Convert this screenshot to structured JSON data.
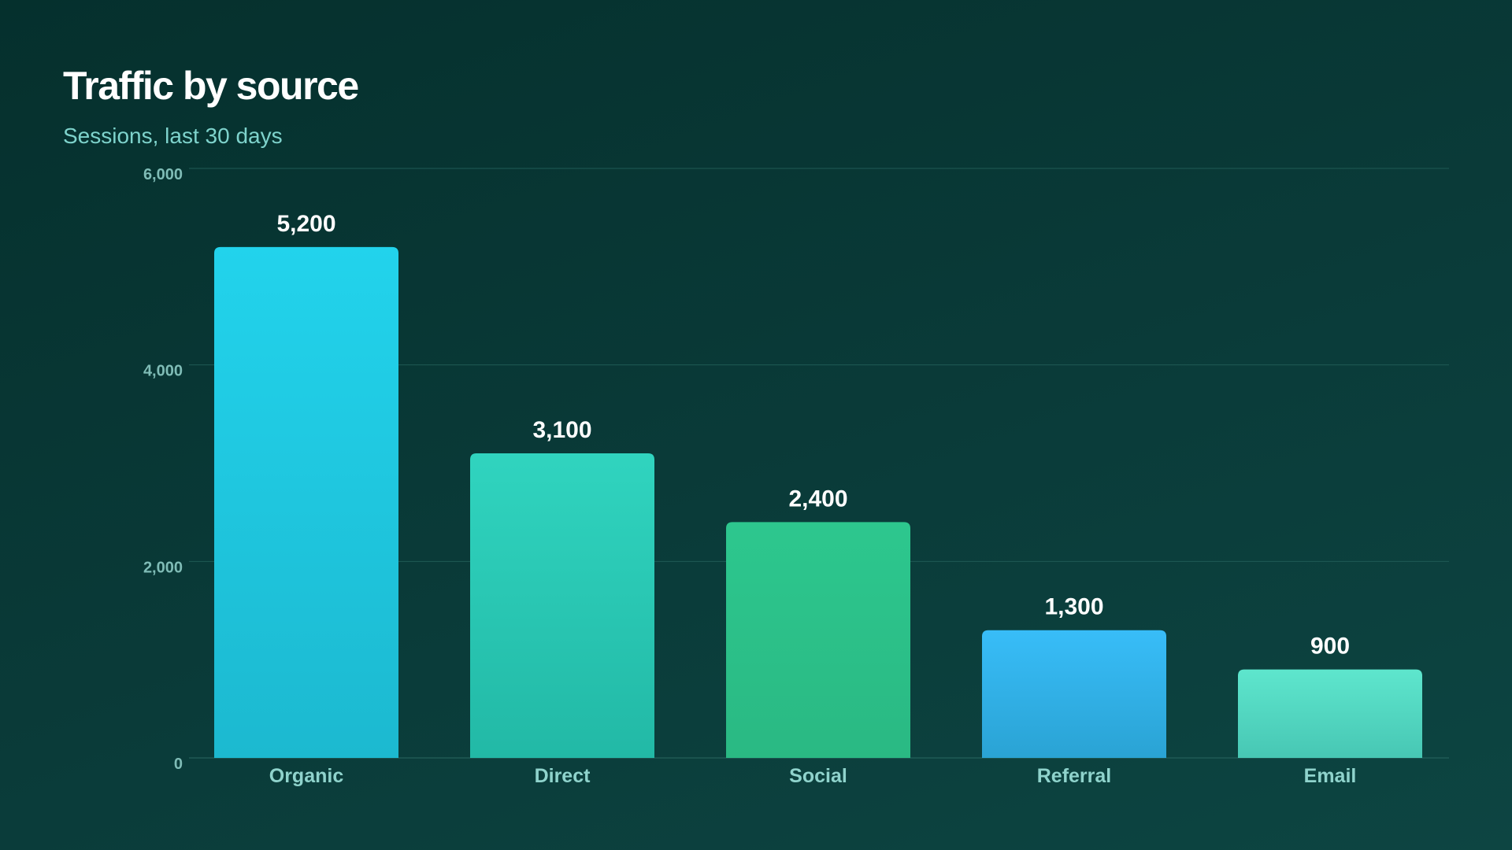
{
  "chart_data": {
    "type": "bar",
    "title": "Traffic by source",
    "subtitle": "Sessions, last 30 days",
    "xlabel": "",
    "ylabel": "",
    "categories": [
      "Organic",
      "Direct",
      "Social",
      "Referral",
      "Email"
    ],
    "values": [
      5200,
      3100,
      2400,
      1300,
      900
    ],
    "value_labels": [
      "5,200",
      "3,100",
      "2,400",
      "1,300",
      "900"
    ],
    "ylim": [
      0,
      6000
    ],
    "yticks": [
      0,
      2000,
      4000,
      6000
    ],
    "ytick_labels": [
      "0",
      "2,000",
      "4,000",
      "6,000"
    ],
    "grid": true,
    "legend": "none",
    "colors": [
      [
        "#22d3ec",
        "#1cb9d0"
      ],
      [
        "#30d4bf",
        "#22b9a6"
      ],
      [
        "#2dc78e",
        "#2ab983"
      ],
      [
        "#38bdf8",
        "#2aa3d4"
      ],
      [
        "#5ee6cd",
        "#47c7b4"
      ]
    ],
    "background": "#06302e",
    "gridline_color": "#1f5a55"
  }
}
